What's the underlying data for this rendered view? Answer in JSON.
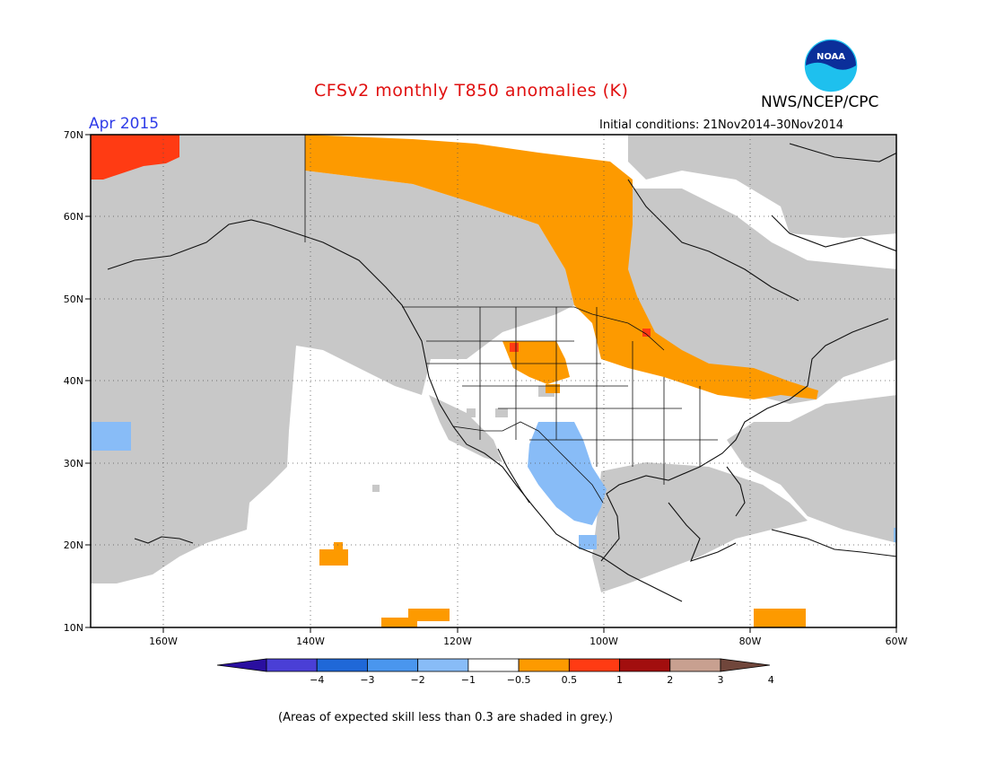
{
  "header": {
    "title": "CFSv2 monthly T850 anomalies (K)",
    "valid_month": "Apr 2015",
    "agency": "NWS/NCEP/CPC",
    "initial_conditions": "Initial conditions: 21Nov2014–30Nov2014",
    "logo_text": "NOAA"
  },
  "axes": {
    "lat_labels": [
      "70N",
      "60N",
      "50N",
      "40N",
      "30N",
      "20N",
      "10N"
    ],
    "lon_labels": [
      "160W",
      "140W",
      "120W",
      "100W",
      "80W",
      "60W"
    ]
  },
  "colorbar": {
    "ticks": [
      "−4",
      "−3",
      "−2",
      "−1",
      "−0.5",
      "0.5",
      "1",
      "2",
      "3",
      "4"
    ],
    "colors": [
      "#2a0fa0",
      "#4a3fd6",
      "#1f68d8",
      "#4a96ee",
      "#88bcf7",
      "#ffffff",
      "#fd9a00",
      "#ff3b13",
      "#a20e0e",
      "#c8a090",
      "#70463b"
    ]
  },
  "colors": {
    "low_skill_grey": "#c8c8c8",
    "warm_05_1": "#fd9a00",
    "warm_1_2": "#ff3b13",
    "cool_m1_m05": "#88bcf7"
  },
  "footnote": "(Areas of expected skill less than 0.3 are shaded in grey.)"
}
